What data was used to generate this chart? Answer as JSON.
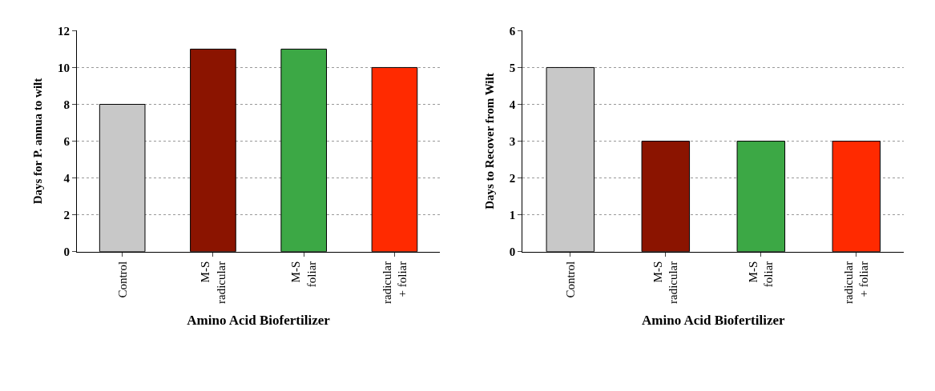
{
  "chart_data": [
    {
      "type": "bar",
      "categories": [
        "Control",
        "M-S\nradicular",
        "M-S\nfoliar",
        "radicular\n+ foliar"
      ],
      "values": [
        8,
        11,
        11,
        10
      ],
      "colors": [
        "#c8c8c8",
        "#8b1400",
        "#3ca845",
        "#ff2a00"
      ],
      "xlabel": "Amino Acid Biofertilizer",
      "ylabel": "Days for P. annua to wilt",
      "ylim": [
        0,
        12
      ],
      "yticks": [
        0,
        2,
        4,
        6,
        8,
        10,
        12
      ],
      "grid": "y"
    },
    {
      "type": "bar",
      "categories": [
        "Control",
        "M-S\nradicular",
        "M-S\nfoliar",
        "radicular\n+ foliar"
      ],
      "values": [
        5,
        3,
        3,
        3
      ],
      "colors": [
        "#c8c8c8",
        "#8b1400",
        "#3ca845",
        "#ff2a00"
      ],
      "xlabel": "Amino Acid Biofertilizer",
      "ylabel": "Days to Recover from Wilt",
      "ylim": [
        0,
        6
      ],
      "yticks": [
        0,
        1,
        2,
        3,
        4,
        5,
        6
      ],
      "grid": "y"
    }
  ]
}
